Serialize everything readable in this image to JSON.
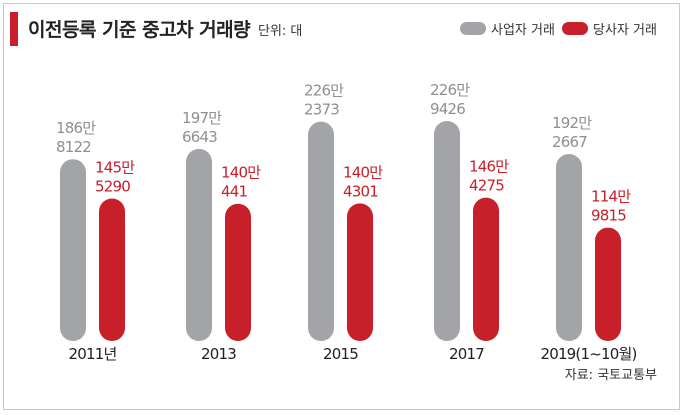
{
  "header": {
    "title": "이전등록 기준 중고차 거래량",
    "unit": "단위: 대"
  },
  "legend": [
    {
      "label": "사업자 거래",
      "color": "#a3a4a8"
    },
    {
      "label": "당사자 거래",
      "color": "#c8202a"
    }
  ],
  "footer": {
    "source": "자료: 국토교통부"
  },
  "chart_data": {
    "type": "bar",
    "categories": [
      "2011년",
      "2013",
      "2015",
      "2017",
      "2019(1~10월)"
    ],
    "series": [
      {
        "name": "사업자 거래",
        "color": "#a3a4a8",
        "values": [
          1868122,
          1976643,
          2262373,
          2269426,
          1922667
        ],
        "labels": [
          [
            "186만",
            "8122"
          ],
          [
            "197만",
            "6643"
          ],
          [
            "226만",
            "2373"
          ],
          [
            "226만",
            "9426"
          ],
          [
            "192만",
            "2667"
          ]
        ]
      },
      {
        "name": "당사자 거래",
        "color": "#c8202a",
        "values": [
          1455290,
          1400441,
          1404301,
          1464275,
          1149815
        ],
        "labels": [
          [
            "145만",
            "5290"
          ],
          [
            "140만",
            "441"
          ],
          [
            "140만",
            "4301"
          ],
          [
            "146만",
            "4275"
          ],
          [
            "114만",
            "9815"
          ]
        ]
      }
    ],
    "legend_position": "top-right",
    "grid": false
  }
}
